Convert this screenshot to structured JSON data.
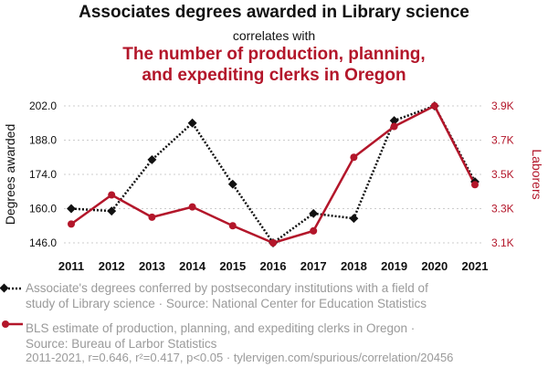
{
  "header": {
    "title": "Associates degrees awarded in Library science",
    "subtitle": "correlates with",
    "title2_line1": "The number of production, planning,",
    "title2_line2": "and expediting clerks in Oregon"
  },
  "chart_data": {
    "type": "line",
    "x": [
      "2011",
      "2012",
      "2013",
      "2014",
      "2015",
      "2016",
      "2017",
      "2018",
      "2019",
      "2020",
      "2021"
    ],
    "series": [
      {
        "name": "Associate's degrees conferred by postsecondary institutions with a field of study of Library science",
        "axis": "left",
        "color": "#111111",
        "style": "dotted",
        "marker": "diamond",
        "values": [
          160,
          159,
          180,
          195,
          170,
          146,
          158,
          156,
          196,
          202,
          171
        ]
      },
      {
        "name": "BLS estimate of production, planning, and expediting clerks in Oregon",
        "axis": "right",
        "color": "#b3162a",
        "style": "solid",
        "marker": "circle",
        "values": [
          3210,
          3380,
          3250,
          3310,
          3200,
          3100,
          3170,
          3600,
          3780,
          3900,
          3440
        ]
      }
    ],
    "ylabel_left": "Degrees awarded",
    "ylabel_right": "Laborers",
    "yticks_left": [
      "146.0",
      "160.0",
      "174.0",
      "188.0",
      "202.0"
    ],
    "yticks_left_values": [
      146,
      160,
      174,
      188,
      202
    ],
    "yticks_right": [
      "3.1K",
      "3.3K",
      "3.5K",
      "3.7K",
      "3.9K"
    ],
    "yticks_right_values": [
      3100,
      3300,
      3500,
      3700,
      3900
    ],
    "ylim_left": [
      146,
      202
    ],
    "ylim_right": [
      3100,
      3900
    ],
    "grid": "horizontal-dotted"
  },
  "legend": {
    "item1_line1": "Associate's degrees conferred by postsecondary institutions with a field of",
    "item1_line2": "study of Library science · Source: National Center for Education Statistics",
    "item2_line1": "BLS estimate of production, planning, and expediting clerks in Oregon ·",
    "item2_line2": "Source: Bureau of Larbor Statistics"
  },
  "footer": "2011-2021, r=0.646, r²=0.417, p<0.05 · tylervigen.com/spurious/correlation/20456",
  "colors": {
    "left_series": "#111111",
    "right_series": "#b3162a",
    "muted_text": "#9a9a9a"
  }
}
